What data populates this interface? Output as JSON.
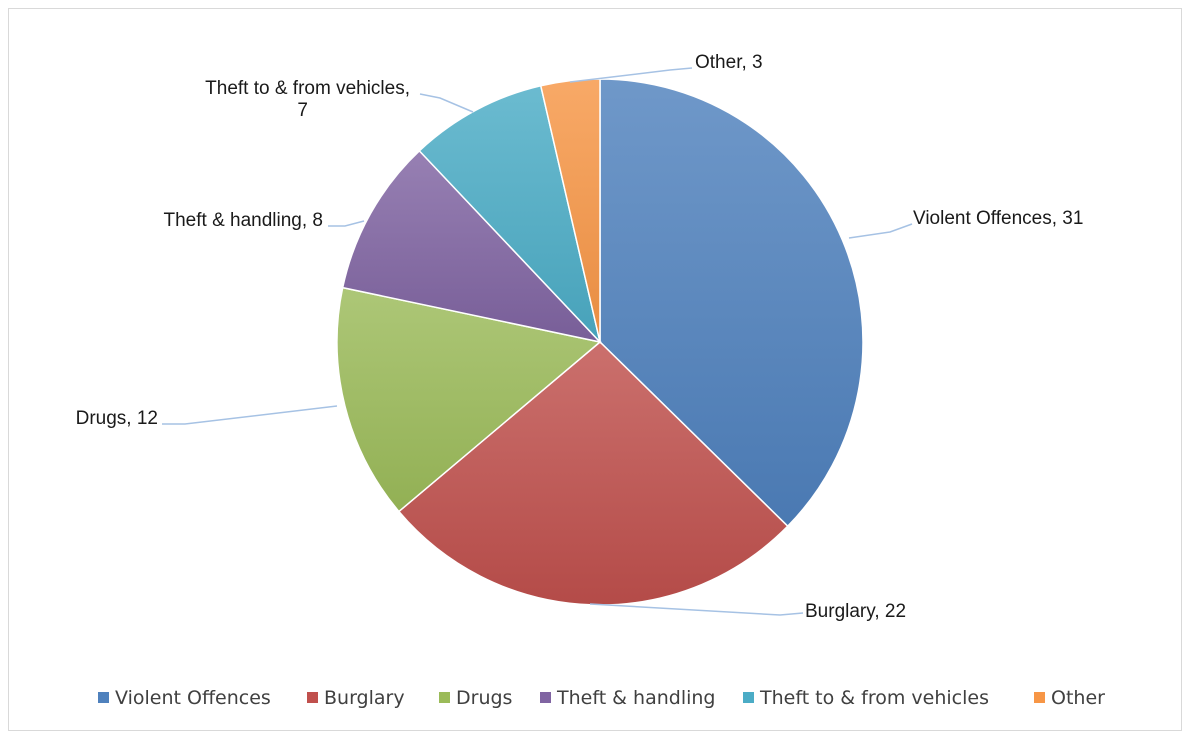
{
  "chart_data": {
    "type": "pie",
    "title": "",
    "start_angle_deg": 0,
    "direction": "clockwise",
    "legend_position": "bottom",
    "slices": [
      {
        "label": "Violent Offences",
        "value": 31,
        "color": "#4f81bd",
        "data_label": "Violent Offences, 31"
      },
      {
        "label": "Burglary",
        "value": 22,
        "color": "#c0504d",
        "data_label": "Burglary, 22"
      },
      {
        "label": "Drugs",
        "value": 12,
        "color": "#9bbb59",
        "data_label": "Drugs, 12"
      },
      {
        "label": "Theft & handling",
        "value": 8,
        "color": "#8064a2",
        "data_label": "Theft & handling, 8"
      },
      {
        "label": "Theft to & from vehicles",
        "value": 7,
        "color": "#4bacc6",
        "data_label": "Theft to & from vehicles,|7"
      },
      {
        "label": "Other",
        "value": 3,
        "color": "#f79646",
        "data_label": "Other, 3"
      }
    ]
  }
}
